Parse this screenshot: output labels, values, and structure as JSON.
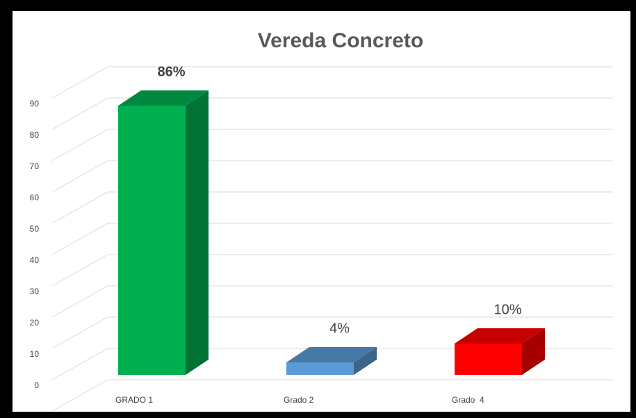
{
  "chart_data": {
    "type": "bar3d",
    "title": "Vereda Concreto",
    "categories": [
      "GRADO 1",
      "Grado 2",
      "Grado  4"
    ],
    "values": [
      86,
      4,
      10
    ],
    "value_labels": [
      "86%",
      "4%",
      "10%"
    ],
    "colors": [
      "#00b050",
      "#5b9bd5",
      "#ff0000"
    ],
    "ylim": [
      0,
      100
    ],
    "yticks": [
      0,
      10,
      20,
      30,
      40,
      50,
      60,
      70,
      80,
      90
    ],
    "grid": true
  }
}
